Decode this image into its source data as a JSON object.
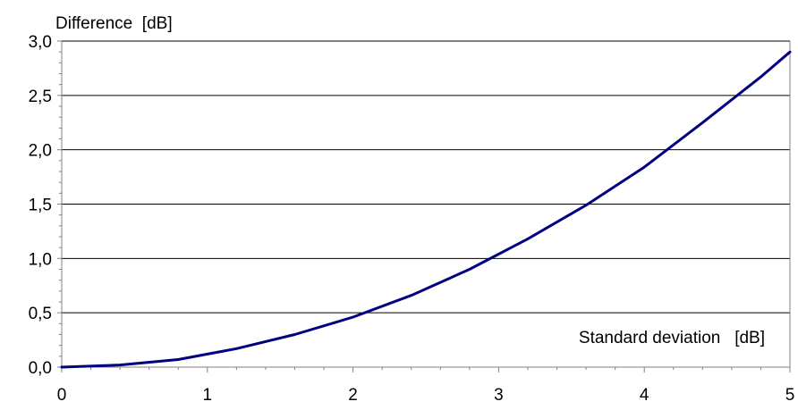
{
  "chart_data": {
    "type": "line",
    "title": "",
    "ylabel": "Difference  [dB]",
    "xlabel": "Standard deviation   [dB]",
    "xlim": [
      0,
      5
    ],
    "ylim": [
      0,
      3.0
    ],
    "x_ticks": [
      0,
      1,
      2,
      3,
      4,
      5
    ],
    "x_tick_labels": [
      "0",
      "1",
      "2",
      "3",
      "4",
      "5"
    ],
    "y_ticks": [
      0,
      0.5,
      1.0,
      1.5,
      2.0,
      2.5,
      3.0
    ],
    "y_tick_labels": [
      "0,0",
      "0,5",
      "1,0",
      "1,5",
      "2,0",
      "2,5",
      "3,0"
    ],
    "grid": "horizontal",
    "series": [
      {
        "color": "#000080",
        "x": [
          0,
          0.4,
          0.8,
          1.2,
          1.6,
          2.0,
          2.4,
          2.8,
          3.2,
          3.6,
          4.0,
          4.4,
          4.8,
          5.0
        ],
        "y": [
          0,
          0.02,
          0.07,
          0.17,
          0.3,
          0.46,
          0.66,
          0.9,
          1.18,
          1.49,
          1.84,
          2.25,
          2.67,
          2.9
        ]
      }
    ]
  }
}
